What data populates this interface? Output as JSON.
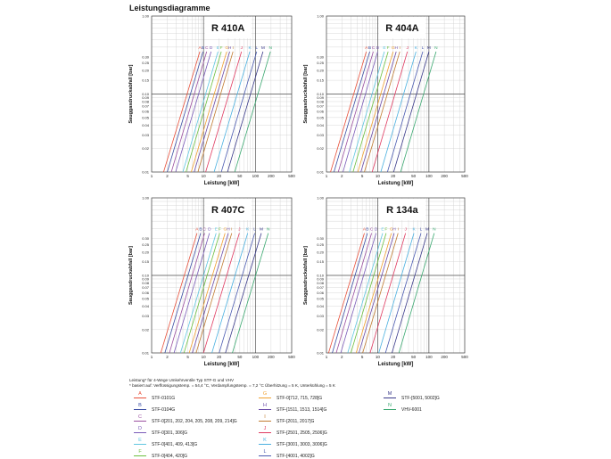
{
  "page_title": "Leistungsdiagramme",
  "footnote_lines": [
    "Leistung* für 4-Wege Umkehrventile Typ STF-G und VHV",
    "* basiert auf: Verflüssigungstemp. = 54,4 °C, Verdampfungstemp. = 7,2 °C Überhitzung = 5 K, Unterkühlung = 5 K"
  ],
  "legend": [
    {
      "letter": "A",
      "name": "STF-0101G",
      "color": "#e8503a"
    },
    {
      "letter": "B",
      "name": "STF-0104G",
      "color": "#3b4ea3"
    },
    {
      "letter": "C",
      "name": "STF-0[201, 202, 204, 205, 208, 209, 214]G",
      "color": "#9b4fa0"
    },
    {
      "letter": "D",
      "name": "STF-0[301, 306]G",
      "color": "#7a5bb8"
    },
    {
      "letter": "E",
      "name": "STF-0[401, 409, 413]G",
      "color": "#5fc6e0"
    },
    {
      "letter": "F",
      "name": "STF-0[404, 420]G",
      "color": "#6cbf3f"
    },
    {
      "letter": "G",
      "name": "STF-0[712, 715, 728]G",
      "color": "#f0a030"
    },
    {
      "letter": "H",
      "name": "STF-[1511, 1513, 1514]G",
      "color": "#6a4aa8"
    },
    {
      "letter": "I",
      "name": "STF-[2011, 2017]G",
      "color": "#c07a30"
    },
    {
      "letter": "J",
      "name": "STF-[2501, 2505, 2506]G",
      "color": "#e03a60"
    },
    {
      "letter": "K",
      "name": "STF-[3001, 3003, 3006]G",
      "color": "#4ab0e0"
    },
    {
      "letter": "L",
      "name": "STF-[4001, 4002]G",
      "color": "#4a5ab0"
    },
    {
      "letter": "M",
      "name": "STF-[5001, 5002]G",
      "color": "#3a3a8a"
    },
    {
      "letter": "N",
      "name": "VHV-6001",
      "color": "#3aa870"
    }
  ],
  "chart_data": [
    {
      "type": "line",
      "title": "R 410A",
      "xlabel": "Leistung [kW]",
      "ylabel": "Sauggasdruckabfall [bar]",
      "x_scale": "log",
      "y_scale": "log",
      "xlim": [
        1,
        500
      ],
      "ylim": [
        0.01,
        1
      ],
      "x_ticks": [
        "1",
        "2",
        "5",
        "10",
        "20",
        "50",
        "100",
        "200",
        "500"
      ],
      "y_ticks": [
        "1.00",
        "0.30",
        "0.25",
        "0.20",
        "0.15",
        "0.10",
        "0.09",
        "0.08",
        "0.07",
        "0.06",
        "0.05",
        "0.04",
        "0.03",
        "0.02",
        "0.01"
      ],
      "series": [
        {
          "name": "A",
          "x": [
            1.7,
            8.5
          ],
          "y": [
            0.01,
            0.35
          ]
        },
        {
          "name": "B",
          "x": [
            2.0,
            9.8
          ],
          "y": [
            0.01,
            0.35
          ]
        },
        {
          "name": "C",
          "x": [
            2.4,
            11.5
          ],
          "y": [
            0.01,
            0.35
          ]
        },
        {
          "name": "D",
          "x": [
            2.9,
            14
          ],
          "y": [
            0.01,
            0.35
          ]
        },
        {
          "name": "E",
          "x": [
            4.0,
            19
          ],
          "y": [
            0.01,
            0.35
          ]
        },
        {
          "name": "F",
          "x": [
            4.6,
            22
          ],
          "y": [
            0.01,
            0.35
          ]
        },
        {
          "name": "G",
          "x": [
            5.8,
            28
          ],
          "y": [
            0.01,
            0.35
          ]
        },
        {
          "name": "H",
          "x": [
            6.6,
            32
          ],
          "y": [
            0.01,
            0.35
          ]
        },
        {
          "name": "I",
          "x": [
            7.8,
            37
          ],
          "y": [
            0.01,
            0.35
          ]
        },
        {
          "name": "J",
          "x": [
            11,
            54
          ],
          "y": [
            0.01,
            0.35
          ]
        },
        {
          "name": "K",
          "x": [
            16,
            78
          ],
          "y": [
            0.01,
            0.35
          ]
        },
        {
          "name": "L",
          "x": [
            22,
            106
          ],
          "y": [
            0.01,
            0.35
          ]
        },
        {
          "name": "M",
          "x": [
            29,
            140
          ],
          "y": [
            0.01,
            0.35
          ]
        },
        {
          "name": "N",
          "x": [
            40,
            195
          ],
          "y": [
            0.01,
            0.35
          ]
        }
      ]
    },
    {
      "type": "line",
      "title": "R 404A",
      "xlabel": "Leistung [kW]",
      "ylabel": "Sauggasdruckabfall [bar]",
      "x_scale": "log",
      "y_scale": "log",
      "xlim": [
        1,
        500
      ],
      "ylim": [
        0.01,
        1
      ],
      "x_ticks": [
        "1",
        "2",
        "5",
        "10",
        "20",
        "50",
        "100",
        "200",
        "500"
      ],
      "y_ticks": [
        "1.00",
        "0.30",
        "0.25",
        "0.20",
        "0.15",
        "0.10",
        "0.09",
        "0.08",
        "0.07",
        "0.06",
        "0.05",
        "0.04",
        "0.03",
        "0.02",
        "0.01"
      ],
      "series": [
        {
          "name": "A",
          "x": [
            1.2,
            6.0
          ],
          "y": [
            0.01,
            0.35
          ]
        },
        {
          "name": "B",
          "x": [
            1.4,
            7.0
          ],
          "y": [
            0.01,
            0.35
          ]
        },
        {
          "name": "C",
          "x": [
            1.7,
            8.2
          ],
          "y": [
            0.01,
            0.35
          ]
        },
        {
          "name": "D",
          "x": [
            2.1,
            10
          ],
          "y": [
            0.01,
            0.35
          ]
        },
        {
          "name": "E",
          "x": [
            2.8,
            13.5
          ],
          "y": [
            0.01,
            0.35
          ]
        },
        {
          "name": "F",
          "x": [
            3.3,
            16
          ],
          "y": [
            0.01,
            0.35
          ]
        },
        {
          "name": "G",
          "x": [
            4.1,
            20
          ],
          "y": [
            0.01,
            0.35
          ]
        },
        {
          "name": "H",
          "x": [
            4.7,
            23
          ],
          "y": [
            0.01,
            0.35
          ]
        },
        {
          "name": "I",
          "x": [
            5.5,
            27
          ],
          "y": [
            0.01,
            0.35
          ]
        },
        {
          "name": "J",
          "x": [
            7.8,
            38
          ],
          "y": [
            0.01,
            0.35
          ]
        },
        {
          "name": "K",
          "x": [
            11.5,
            56
          ],
          "y": [
            0.01,
            0.35
          ]
        },
        {
          "name": "L",
          "x": [
            15.5,
            76
          ],
          "y": [
            0.01,
            0.35
          ]
        },
        {
          "name": "M",
          "x": [
            20.5,
            100
          ],
          "y": [
            0.01,
            0.35
          ]
        },
        {
          "name": "N",
          "x": [
            28,
            138
          ],
          "y": [
            0.01,
            0.35
          ]
        }
      ]
    },
    {
      "type": "line",
      "title": "R 407C",
      "xlabel": "Leistung [kW]",
      "ylabel": "Sauggasdruckabfall [bar]",
      "x_scale": "log",
      "y_scale": "log",
      "xlim": [
        1,
        500
      ],
      "ylim": [
        0.01,
        1
      ],
      "x_ticks": [
        "1",
        "2",
        "5",
        "10",
        "20",
        "50",
        "100",
        "200",
        "500"
      ],
      "y_ticks": [
        "1.00",
        "0.30",
        "0.25",
        "0.20",
        "0.15",
        "0.10",
        "0.09",
        "0.08",
        "0.07",
        "0.06",
        "0.05",
        "0.04",
        "0.03",
        "0.02",
        "0.01"
      ],
      "series": [
        {
          "name": "A",
          "x": [
            1.5,
            7.5
          ],
          "y": [
            0.01,
            0.35
          ]
        },
        {
          "name": "B",
          "x": [
            1.8,
            8.8
          ],
          "y": [
            0.01,
            0.35
          ]
        },
        {
          "name": "C",
          "x": [
            2.2,
            10.5
          ],
          "y": [
            0.01,
            0.35
          ]
        },
        {
          "name": "D",
          "x": [
            2.7,
            13
          ],
          "y": [
            0.01,
            0.35
          ]
        },
        {
          "name": "E",
          "x": [
            3.6,
            17.5
          ],
          "y": [
            0.01,
            0.35
          ]
        },
        {
          "name": "F",
          "x": [
            4.2,
            20.5
          ],
          "y": [
            0.01,
            0.35
          ]
        },
        {
          "name": "G",
          "x": [
            5.3,
            26
          ],
          "y": [
            0.01,
            0.35
          ]
        },
        {
          "name": "H",
          "x": [
            6.1,
            30
          ],
          "y": [
            0.01,
            0.35
          ]
        },
        {
          "name": "I",
          "x": [
            7.2,
            35
          ],
          "y": [
            0.01,
            0.35
          ]
        },
        {
          "name": "J",
          "x": [
            10,
            49
          ],
          "y": [
            0.01,
            0.35
          ]
        },
        {
          "name": "K",
          "x": [
            14.5,
            71
          ],
          "y": [
            0.01,
            0.35
          ]
        },
        {
          "name": "L",
          "x": [
            20,
            97
          ],
          "y": [
            0.01,
            0.35
          ]
        },
        {
          "name": "M",
          "x": [
            26.5,
            130
          ],
          "y": [
            0.01,
            0.35
          ]
        },
        {
          "name": "N",
          "x": [
            36,
            177
          ],
          "y": [
            0.01,
            0.35
          ]
        }
      ]
    },
    {
      "type": "line",
      "title": "R 134a",
      "xlabel": "Leistung [kW]",
      "ylabel": "Sauggasdruckabfall [bar]",
      "x_scale": "log",
      "y_scale": "log",
      "xlim": [
        1,
        500
      ],
      "ylim": [
        0.01,
        1
      ],
      "x_ticks": [
        "1",
        "2",
        "5",
        "10",
        "20",
        "50",
        "100",
        "200",
        "500"
      ],
      "y_ticks": [
        "1.00",
        "0.30",
        "0.25",
        "0.20",
        "0.15",
        "0.10",
        "0.09",
        "0.08",
        "0.07",
        "0.06",
        "0.05",
        "0.04",
        "0.03",
        "0.02",
        "0.01"
      ],
      "series": [
        {
          "name": "A",
          "x": [
            1.1,
            5.5
          ],
          "y": [
            0.01,
            0.35
          ]
        },
        {
          "name": "B",
          "x": [
            1.3,
            6.3
          ],
          "y": [
            0.01,
            0.35
          ]
        },
        {
          "name": "C",
          "x": [
            1.55,
            7.6
          ],
          "y": [
            0.01,
            0.35
          ]
        },
        {
          "name": "D",
          "x": [
            1.9,
            9.3
          ],
          "y": [
            0.01,
            0.35
          ]
        },
        {
          "name": "E",
          "x": [
            2.6,
            12.5
          ],
          "y": [
            0.01,
            0.35
          ]
        },
        {
          "name": "F",
          "x": [
            3.0,
            14.6
          ],
          "y": [
            0.01,
            0.35
          ]
        },
        {
          "name": "G",
          "x": [
            3.8,
            18.5
          ],
          "y": [
            0.01,
            0.35
          ]
        },
        {
          "name": "H",
          "x": [
            4.3,
            21
          ],
          "y": [
            0.01,
            0.35
          ]
        },
        {
          "name": "I",
          "x": [
            5.1,
            25
          ],
          "y": [
            0.01,
            0.35
          ]
        },
        {
          "name": "J",
          "x": [
            7.1,
            35
          ],
          "y": [
            0.01,
            0.35
          ]
        },
        {
          "name": "K",
          "x": [
            10.5,
            51
          ],
          "y": [
            0.01,
            0.35
          ]
        },
        {
          "name": "L",
          "x": [
            14.2,
            70
          ],
          "y": [
            0.01,
            0.35
          ]
        },
        {
          "name": "M",
          "x": [
            19,
            93
          ],
          "y": [
            0.01,
            0.35
          ]
        },
        {
          "name": "N",
          "x": [
            26,
            127
          ],
          "y": [
            0.01,
            0.35
          ]
        }
      ]
    }
  ]
}
